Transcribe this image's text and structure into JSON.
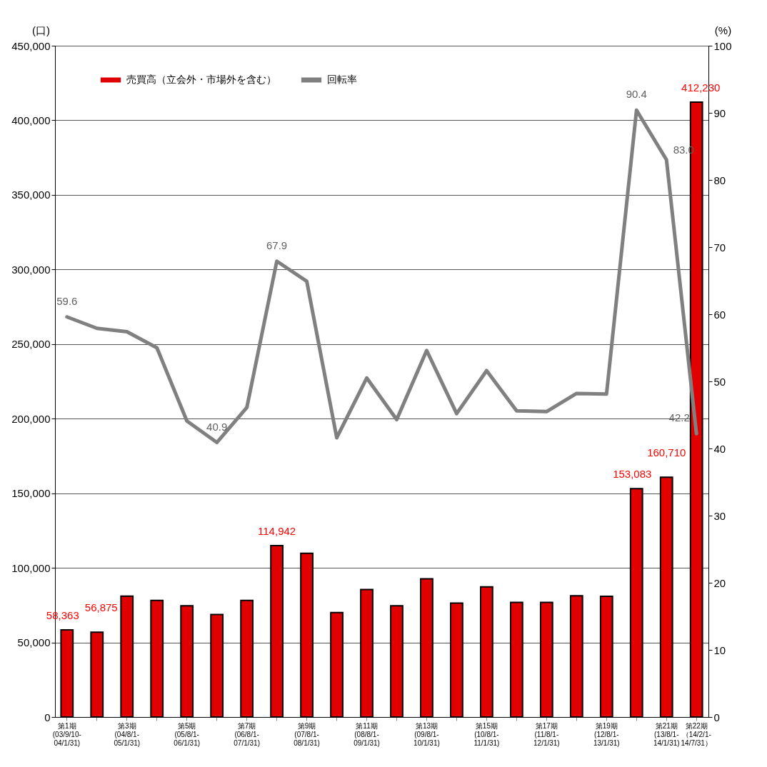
{
  "chart_data": {
    "type": "bar",
    "ylabel": "(口)",
    "y2label": "(%)",
    "categories": [
      "第1期(03/9/10-04/1/31)",
      null,
      "第3期(04/8/1-05/1/31)",
      null,
      "第5期(05/8/1-06/1/31)",
      null,
      "第7期(06/8/1-07/1/31)",
      null,
      "第9期(07/8/1-08/1/31)",
      null,
      "第11期(08/8/1-09/1/31)",
      null,
      "第13期(09/8/1-10/1/31)",
      null,
      "第15期(10/8/1-11/1/31)",
      null,
      "第17期(11/8/1-12/1/31)",
      null,
      "第19期(12/8/1-13/1/31)",
      null,
      "第21期(13/8/1-14/1/31)",
      "第22期（14/2/1-14/7/31）"
    ],
    "series": [
      {
        "name": "売買高（立会外・市場外を含む）",
        "color": "#e00000",
        "values": [
          58363,
          56875,
          81000,
          78200,
          74600,
          68700,
          78200,
          114942,
          109800,
          70000,
          85400,
          74600,
          92600,
          76400,
          87200,
          76800,
          76800,
          81300,
          80900,
          153083,
          160710,
          412230
        ],
        "value_labels": [
          "58,363",
          "56,875",
          null,
          null,
          null,
          null,
          null,
          "114,942",
          null,
          null,
          null,
          null,
          null,
          null,
          null,
          null,
          null,
          null,
          null,
          "153,083",
          "160,710",
          "412,230"
        ]
      },
      {
        "name": "回転率",
        "type": "line",
        "axis": "y2",
        "color": "#808080",
        "values": [
          59.6,
          57.9,
          57.4,
          55.0,
          44.1,
          40.9,
          46.1,
          67.9,
          64.9,
          41.6,
          50.5,
          44.3,
          54.6,
          45.2,
          51.6,
          45.6,
          45.5,
          48.2,
          48.1,
          90.4,
          83.0,
          42.2
        ],
        "value_labels": [
          "59.6",
          null,
          null,
          null,
          null,
          "40.9",
          null,
          "67.9",
          null,
          null,
          null,
          null,
          null,
          null,
          null,
          null,
          null,
          null,
          null,
          "90.4",
          "83.0",
          "42.2"
        ]
      }
    ],
    "ylim": [
      0,
      450000
    ],
    "yticks": [
      0,
      {
        "value": 50000,
        "label": "50,000"
      },
      {
        "value": 100000,
        "label": "100,000"
      },
      {
        "value": 150000,
        "label": "150,000"
      },
      {
        "value": 200000,
        "label": "200,000"
      },
      {
        "value": 250000,
        "label": "250,000"
      },
      {
        "value": 300000,
        "label": "300,000"
      },
      {
        "value": 350000,
        "label": "350,000"
      },
      {
        "value": 400000,
        "label": "400,000"
      },
      {
        "value": 450000,
        "label": "450,000"
      }
    ],
    "y2lim": [
      0,
      100
    ],
    "y2ticks": [
      0,
      10,
      20,
      30,
      40,
      50,
      60,
      70,
      80,
      90,
      100
    ],
    "grid": "y",
    "legend": "top left"
  }
}
